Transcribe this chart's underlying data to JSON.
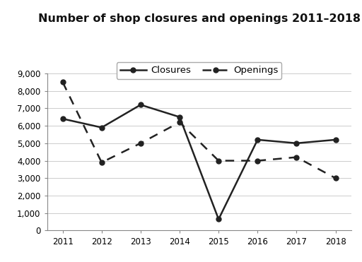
{
  "title": "Number of shop closures and openings 2011–2018",
  "years": [
    2011,
    2012,
    2013,
    2014,
    2015,
    2016,
    2017,
    2018
  ],
  "closures": [
    6400,
    5900,
    7200,
    6500,
    650,
    5200,
    5000,
    5200
  ],
  "openings": [
    8500,
    3900,
    5000,
    6200,
    4000,
    4000,
    4200,
    3000
  ],
  "ylim": [
    0,
    9000
  ],
  "yticks": [
    0,
    1000,
    2000,
    3000,
    4000,
    5000,
    6000,
    7000,
    8000,
    9000
  ],
  "ytick_labels": [
    "0",
    "1,000",
    "2,000",
    "3,000",
    "4,000",
    "5,000",
    "6,000",
    "7,000",
    "8,000",
    "9,000"
  ],
  "line_color": "#222222",
  "background_color": "#ffffff",
  "legend_labels": [
    "Closures",
    "Openings"
  ],
  "title_fontsize": 11.5,
  "legend_fontsize": 9.5,
  "tick_fontsize": 8.5,
  "grid_color": "#cccccc"
}
